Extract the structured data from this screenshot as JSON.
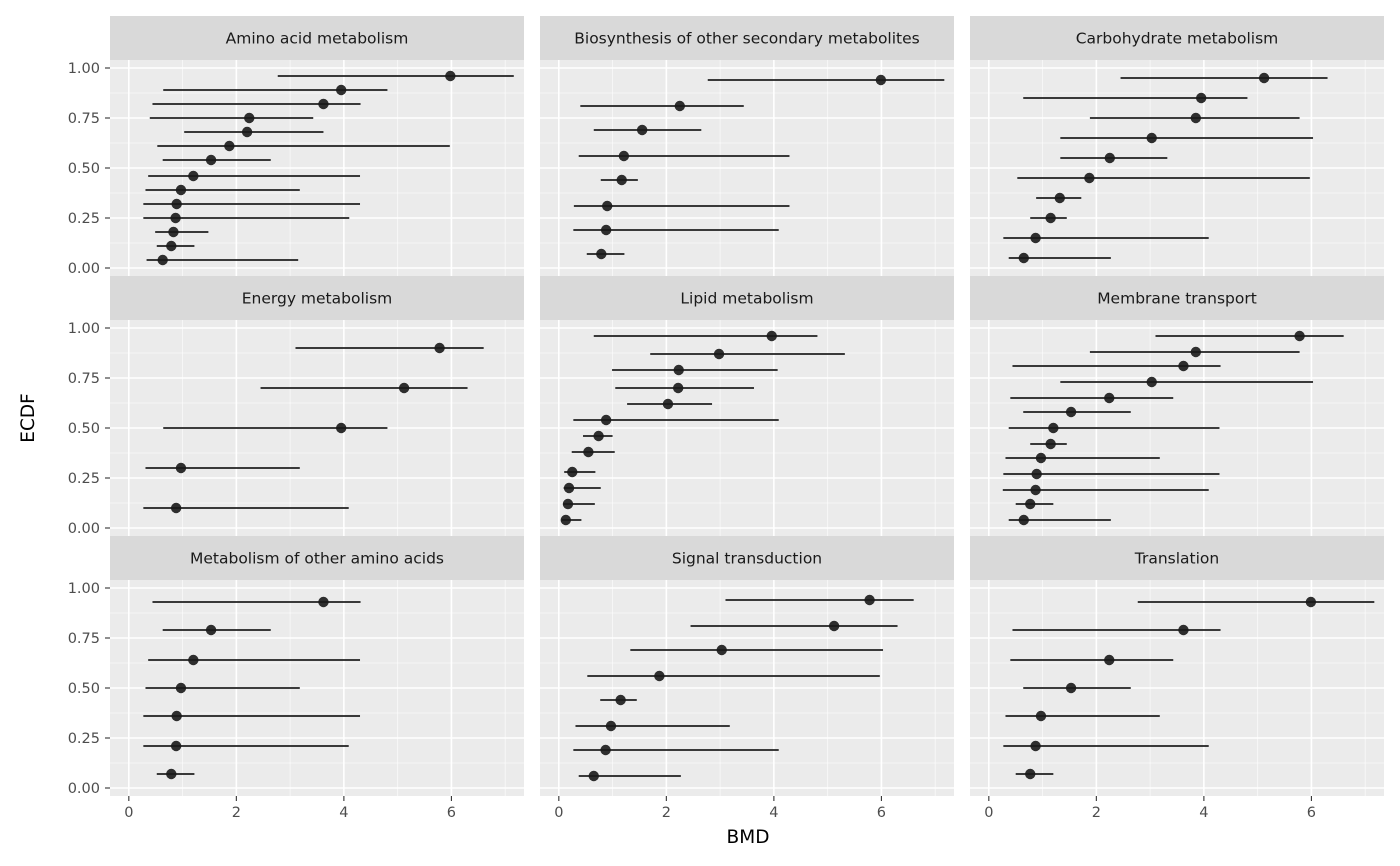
{
  "chart_data": {
    "type": "scatter",
    "layout": "faceted 3x3 grid, shared axes",
    "xlabel": "BMD",
    "ylabel": "ECDF",
    "xlim": [
      -0.35,
      7.35
    ],
    "ylim": [
      -0.04,
      1.04
    ],
    "x_ticks": [
      "0",
      "2",
      "4",
      "6"
    ],
    "x_tick_values": [
      0,
      2,
      4,
      6
    ],
    "y_ticks": [
      "0.00",
      "0.25",
      "0.50",
      "0.75",
      "1.00"
    ],
    "y_tick_values": [
      0,
      0.25,
      0.5,
      0.75,
      1.0
    ],
    "grid": true,
    "colors": {
      "panel_bg": "#EBEBEB",
      "strip_bg": "#D9D9D9",
      "grid": "#FFFFFF",
      "mark": "#1A1A1A"
    },
    "panels": [
      {
        "title": "Amino acid metabolism",
        "points": [
          {
            "x": 0.63,
            "y": 0.04,
            "lo": 0.33,
            "hi": 3.15
          },
          {
            "x": 0.79,
            "y": 0.11,
            "lo": 0.52,
            "hi": 1.22
          },
          {
            "x": 0.83,
            "y": 0.18,
            "lo": 0.49,
            "hi": 1.48
          },
          {
            "x": 0.87,
            "y": 0.25,
            "lo": 0.27,
            "hi": 4.1
          },
          {
            "x": 0.89,
            "y": 0.32,
            "lo": 0.27,
            "hi": 4.3
          },
          {
            "x": 0.97,
            "y": 0.39,
            "lo": 0.31,
            "hi": 3.18
          },
          {
            "x": 1.2,
            "y": 0.46,
            "lo": 0.36,
            "hi": 4.3
          },
          {
            "x": 1.53,
            "y": 0.54,
            "lo": 0.63,
            "hi": 2.64
          },
          {
            "x": 1.87,
            "y": 0.61,
            "lo": 0.53,
            "hi": 5.97
          },
          {
            "x": 2.2,
            "y": 0.68,
            "lo": 1.03,
            "hi": 3.62
          },
          {
            "x": 2.24,
            "y": 0.75,
            "lo": 0.39,
            "hi": 3.43
          },
          {
            "x": 3.62,
            "y": 0.82,
            "lo": 0.44,
            "hi": 4.31
          },
          {
            "x": 3.95,
            "y": 0.89,
            "lo": 0.64,
            "hi": 4.81
          },
          {
            "x": 5.98,
            "y": 0.96,
            "lo": 2.77,
            "hi": 7.16
          }
        ]
      },
      {
        "title": "Biosynthesis of other secondary metabolites",
        "points": [
          {
            "x": 0.79,
            "y": 0.07,
            "lo": 0.52,
            "hi": 1.22
          },
          {
            "x": 0.88,
            "y": 0.19,
            "lo": 0.27,
            "hi": 4.09
          },
          {
            "x": 0.9,
            "y": 0.31,
            "lo": 0.28,
            "hi": 4.29
          },
          {
            "x": 1.17,
            "y": 0.44,
            "lo": 0.78,
            "hi": 1.47
          },
          {
            "x": 1.21,
            "y": 0.56,
            "lo": 0.37,
            "hi": 4.29
          },
          {
            "x": 1.55,
            "y": 0.69,
            "lo": 0.65,
            "hi": 2.65
          },
          {
            "x": 2.25,
            "y": 0.81,
            "lo": 0.4,
            "hi": 3.44
          },
          {
            "x": 5.99,
            "y": 0.94,
            "lo": 2.77,
            "hi": 7.17
          }
        ]
      },
      {
        "title": "Carbohydrate metabolism",
        "points": [
          {
            "x": 0.65,
            "y": 0.05,
            "lo": 0.37,
            "hi": 2.27
          },
          {
            "x": 0.87,
            "y": 0.15,
            "lo": 0.27,
            "hi": 4.09
          },
          {
            "x": 1.15,
            "y": 0.25,
            "lo": 0.77,
            "hi": 1.45
          },
          {
            "x": 1.32,
            "y": 0.35,
            "lo": 0.88,
            "hi": 1.72
          },
          {
            "x": 1.87,
            "y": 0.45,
            "lo": 0.53,
            "hi": 5.97
          },
          {
            "x": 2.25,
            "y": 0.55,
            "lo": 1.33,
            "hi": 3.32
          },
          {
            "x": 3.03,
            "y": 0.65,
            "lo": 1.33,
            "hi": 6.03
          },
          {
            "x": 3.85,
            "y": 0.75,
            "lo": 1.88,
            "hi": 5.78
          },
          {
            "x": 3.95,
            "y": 0.85,
            "lo": 0.64,
            "hi": 4.81
          },
          {
            "x": 5.12,
            "y": 0.95,
            "lo": 2.45,
            "hi": 6.3
          }
        ]
      },
      {
        "title": "Energy metabolism",
        "points": [
          {
            "x": 0.88,
            "y": 0.1,
            "lo": 0.27,
            "hi": 4.09
          },
          {
            "x": 0.97,
            "y": 0.3,
            "lo": 0.31,
            "hi": 3.18
          },
          {
            "x": 3.95,
            "y": 0.5,
            "lo": 0.64,
            "hi": 4.81
          },
          {
            "x": 5.12,
            "y": 0.7,
            "lo": 2.45,
            "hi": 6.3
          },
          {
            "x": 5.78,
            "y": 0.9,
            "lo": 3.1,
            "hi": 6.6
          }
        ]
      },
      {
        "title": "Lipid metabolism",
        "points": [
          {
            "x": 0.13,
            "y": 0.04,
            "lo": 0.05,
            "hi": 0.42
          },
          {
            "x": 0.17,
            "y": 0.12,
            "lo": 0.08,
            "hi": 0.67
          },
          {
            "x": 0.19,
            "y": 0.2,
            "lo": 0.09,
            "hi": 0.78
          },
          {
            "x": 0.25,
            "y": 0.28,
            "lo": 0.1,
            "hi": 0.68
          },
          {
            "x": 0.55,
            "y": 0.38,
            "lo": 0.24,
            "hi": 1.04
          },
          {
            "x": 0.74,
            "y": 0.46,
            "lo": 0.45,
            "hi": 1.0
          },
          {
            "x": 0.88,
            "y": 0.54,
            "lo": 0.27,
            "hi": 4.09
          },
          {
            "x": 2.03,
            "y": 0.62,
            "lo": 1.27,
            "hi": 2.85
          },
          {
            "x": 2.22,
            "y": 0.7,
            "lo": 1.05,
            "hi": 3.63
          },
          {
            "x": 2.23,
            "y": 0.79,
            "lo": 0.99,
            "hi": 4.07
          },
          {
            "x": 2.98,
            "y": 0.87,
            "lo": 1.7,
            "hi": 5.32
          },
          {
            "x": 3.96,
            "y": 0.96,
            "lo": 0.65,
            "hi": 4.81
          }
        ]
      },
      {
        "title": "Membrane transport",
        "points": [
          {
            "x": 0.65,
            "y": 0.04,
            "lo": 0.37,
            "hi": 2.27
          },
          {
            "x": 0.77,
            "y": 0.12,
            "lo": 0.5,
            "hi": 1.2
          },
          {
            "x": 0.87,
            "y": 0.19,
            "lo": 0.26,
            "hi": 4.09
          },
          {
            "x": 0.89,
            "y": 0.27,
            "lo": 0.27,
            "hi": 4.29
          },
          {
            "x": 0.97,
            "y": 0.35,
            "lo": 0.31,
            "hi": 3.18
          },
          {
            "x": 1.15,
            "y": 0.42,
            "lo": 0.77,
            "hi": 1.45
          },
          {
            "x": 1.2,
            "y": 0.5,
            "lo": 0.37,
            "hi": 4.29
          },
          {
            "x": 1.53,
            "y": 0.58,
            "lo": 0.64,
            "hi": 2.64
          },
          {
            "x": 2.24,
            "y": 0.65,
            "lo": 0.4,
            "hi": 3.43
          },
          {
            "x": 3.03,
            "y": 0.73,
            "lo": 1.33,
            "hi": 6.03
          },
          {
            "x": 3.62,
            "y": 0.81,
            "lo": 0.44,
            "hi": 4.31
          },
          {
            "x": 3.85,
            "y": 0.88,
            "lo": 1.88,
            "hi": 5.78
          },
          {
            "x": 5.78,
            "y": 0.96,
            "lo": 3.1,
            "hi": 6.6
          }
        ]
      },
      {
        "title": "Metabolism of other amino acids",
        "points": [
          {
            "x": 0.79,
            "y": 0.07,
            "lo": 0.52,
            "hi": 1.22
          },
          {
            "x": 0.88,
            "y": 0.21,
            "lo": 0.27,
            "hi": 4.09
          },
          {
            "x": 0.89,
            "y": 0.36,
            "lo": 0.27,
            "hi": 4.3
          },
          {
            "x": 0.97,
            "y": 0.5,
            "lo": 0.31,
            "hi": 3.18
          },
          {
            "x": 1.2,
            "y": 0.64,
            "lo": 0.36,
            "hi": 4.3
          },
          {
            "x": 1.53,
            "y": 0.79,
            "lo": 0.63,
            "hi": 2.64
          },
          {
            "x": 3.62,
            "y": 0.93,
            "lo": 0.44,
            "hi": 4.31
          }
        ]
      },
      {
        "title": "Signal transduction",
        "points": [
          {
            "x": 0.65,
            "y": 0.06,
            "lo": 0.37,
            "hi": 2.27
          },
          {
            "x": 0.87,
            "y": 0.19,
            "lo": 0.27,
            "hi": 4.09
          },
          {
            "x": 0.97,
            "y": 0.31,
            "lo": 0.31,
            "hi": 3.18
          },
          {
            "x": 1.15,
            "y": 0.44,
            "lo": 0.77,
            "hi": 1.45
          },
          {
            "x": 1.87,
            "y": 0.56,
            "lo": 0.53,
            "hi": 5.97
          },
          {
            "x": 3.03,
            "y": 0.69,
            "lo": 1.33,
            "hi": 6.03
          },
          {
            "x": 5.12,
            "y": 0.81,
            "lo": 2.45,
            "hi": 6.3
          },
          {
            "x": 5.78,
            "y": 0.94,
            "lo": 3.1,
            "hi": 6.6
          }
        ]
      },
      {
        "title": "Translation",
        "points": [
          {
            "x": 0.77,
            "y": 0.07,
            "lo": 0.5,
            "hi": 1.2
          },
          {
            "x": 0.87,
            "y": 0.21,
            "lo": 0.27,
            "hi": 4.09
          },
          {
            "x": 0.97,
            "y": 0.36,
            "lo": 0.31,
            "hi": 3.18
          },
          {
            "x": 1.53,
            "y": 0.5,
            "lo": 0.64,
            "hi": 2.64
          },
          {
            "x": 2.24,
            "y": 0.64,
            "lo": 0.4,
            "hi": 3.43
          },
          {
            "x": 3.62,
            "y": 0.79,
            "lo": 0.44,
            "hi": 4.31
          },
          {
            "x": 5.99,
            "y": 0.93,
            "lo": 2.77,
            "hi": 7.17
          }
        ]
      }
    ]
  }
}
